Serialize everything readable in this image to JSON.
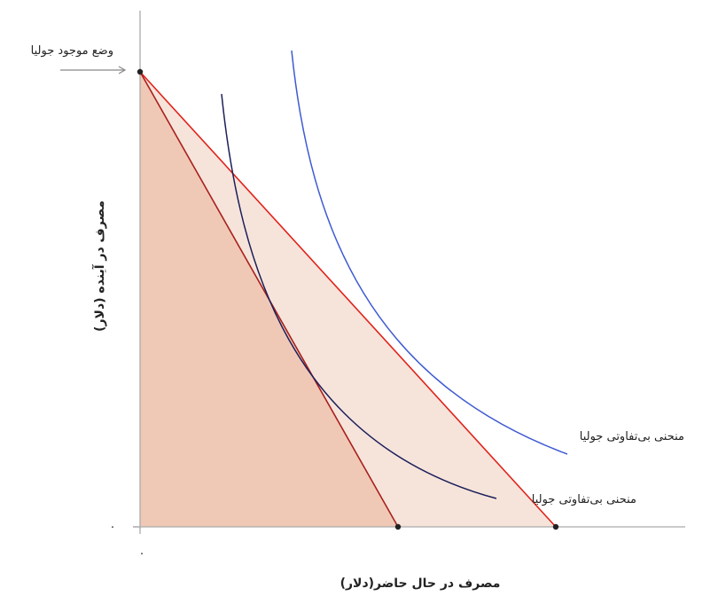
{
  "diagram": {
    "title": "",
    "x_axis_label": "مصرف در حال حاضر(دلار)",
    "y_axis_label": "مصرف در آینده (دلار)",
    "origin_x_tick": "۰",
    "origin_y_tick": "۰",
    "endowment_label": "وضع موجود جولیا",
    "curve_label_upper": "منحنی بی‌تفاوتی جولیا",
    "curve_label_lower": "منحنی بی‌تفاوتی جولیا"
  },
  "colors": {
    "background": "#ffffff",
    "axis": "#aaaaaa",
    "arrow": "#888888",
    "feasible_inner_fill": "#f0c9b6",
    "feasible_outer_fill": "#f6e4db",
    "budget_line_outer": "#e0231b",
    "budget_line_inner": "#a8201c",
    "indifference_upper": "#3f5bd1",
    "indifference_lower": "#1c1f5a",
    "points": "#222222",
    "text": "#222222"
  }
}
